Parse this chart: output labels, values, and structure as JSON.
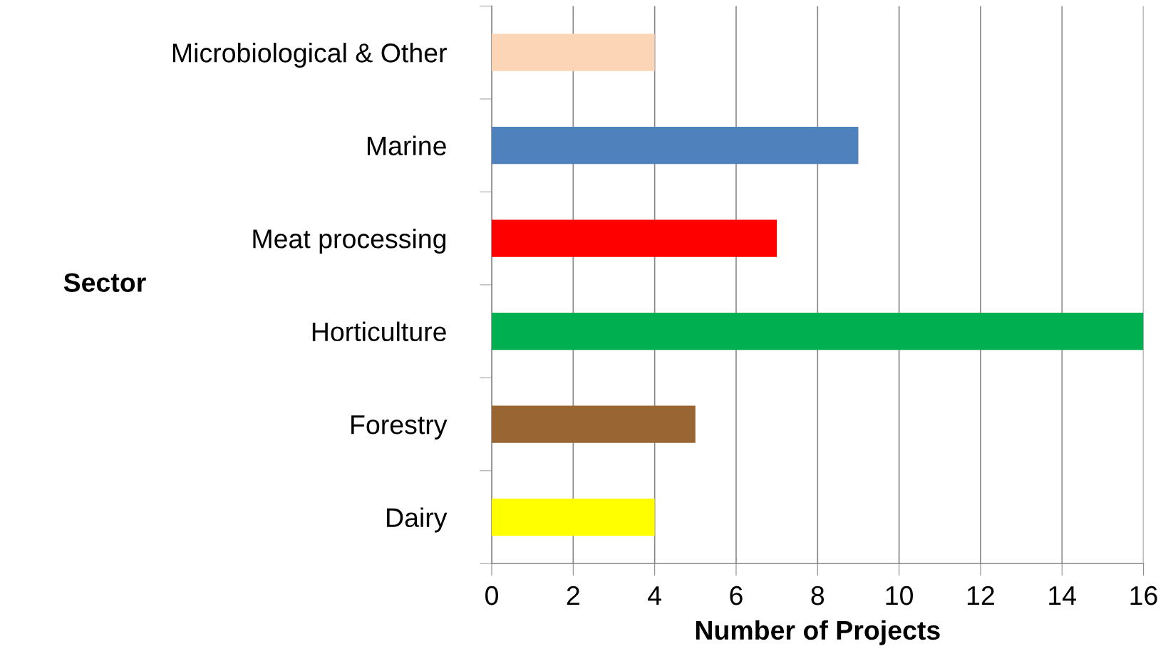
{
  "chart_data": {
    "type": "bar",
    "orientation": "horizontal",
    "xlabel": "Number of Projects",
    "ylabel": "Sector",
    "categories": [
      "Microbiological & Other",
      "Marine",
      "Meat processing",
      "Horticulture",
      "Forestry",
      "Dairy"
    ],
    "values": [
      4,
      9,
      7,
      16,
      5,
      4
    ],
    "colors": [
      "#fbd5b5",
      "#4f81bd",
      "#ff0000",
      "#00b050",
      "#996633",
      "#ffff00"
    ],
    "xlim": [
      0,
      16
    ],
    "xticks": [
      0,
      2,
      4,
      6,
      8,
      10,
      12,
      14,
      16
    ],
    "grid": "x",
    "legend": false
  }
}
